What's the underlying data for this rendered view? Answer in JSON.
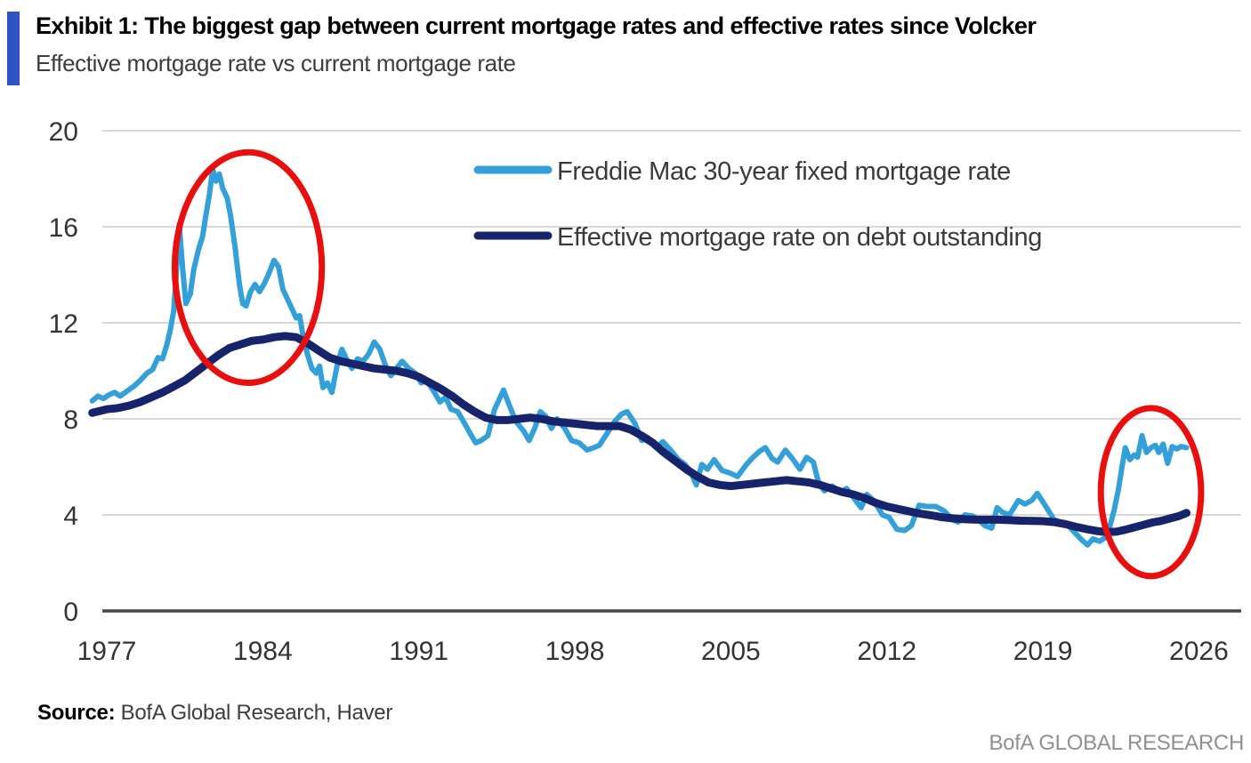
{
  "header": {
    "title": "Exhibit 1: The biggest gap between current mortgage rates and effective rates since Volcker",
    "subtitle": "Effective mortgage rate vs current mortgage rate",
    "accent_color": "#2e53c6"
  },
  "footer": {
    "source_label": "Source:",
    "source_value": " BofA Global Research, Haver",
    "brand": "BofA GLOBAL RESEARCH"
  },
  "chart_data": {
    "type": "line",
    "title": "Exhibit 1: The biggest gap between current mortgage rates and effective rates since Volcker",
    "subtitle": "Effective mortgage rate vs current mortgage rate",
    "xlabel": "",
    "ylabel": "",
    "xticks": [
      1977,
      1984,
      1991,
      1998,
      2005,
      2012,
      2019,
      2026
    ],
    "yticks": [
      0,
      4,
      8,
      12,
      16,
      20
    ],
    "xlim": [
      1976.8,
      2027.9
    ],
    "ylim": [
      0,
      20
    ],
    "grid": "horizontal",
    "grid_color": "#d8d8d8",
    "axis_color": "#474747",
    "legend_position": "top-center-inside",
    "series": [
      {
        "name": "Freddie Mac 30-year fixed mortgage rate",
        "color": "#33a0d9",
        "width": 6,
        "points": [
          [
            1976.35,
            8.75
          ],
          [
            1976.6,
            8.95
          ],
          [
            1976.85,
            8.85
          ],
          [
            1977.1,
            9.0
          ],
          [
            1977.35,
            9.1
          ],
          [
            1977.6,
            8.95
          ],
          [
            1977.9,
            9.15
          ],
          [
            1978.2,
            9.35
          ],
          [
            1978.5,
            9.6
          ],
          [
            1978.8,
            9.9
          ],
          [
            1979.05,
            10.05
          ],
          [
            1979.3,
            10.55
          ],
          [
            1979.5,
            10.5
          ],
          [
            1979.7,
            11.1
          ],
          [
            1979.85,
            11.7
          ],
          [
            1980.0,
            12.5
          ],
          [
            1980.1,
            13.8
          ],
          [
            1980.25,
            16.1
          ],
          [
            1980.4,
            14.3
          ],
          [
            1980.55,
            12.8
          ],
          [
            1980.75,
            13.2
          ],
          [
            1980.9,
            14.2
          ],
          [
            1981.1,
            15.0
          ],
          [
            1981.3,
            15.6
          ],
          [
            1981.45,
            16.5
          ],
          [
            1981.6,
            17.3
          ],
          [
            1981.75,
            18.4
          ],
          [
            1981.9,
            17.9
          ],
          [
            1982.05,
            18.2
          ],
          [
            1982.2,
            17.6
          ],
          [
            1982.4,
            17.2
          ],
          [
            1982.55,
            16.5
          ],
          [
            1982.75,
            15.2
          ],
          [
            1982.95,
            13.6
          ],
          [
            1983.1,
            12.8
          ],
          [
            1983.25,
            12.7
          ],
          [
            1983.45,
            13.3
          ],
          [
            1983.65,
            13.6
          ],
          [
            1983.85,
            13.3
          ],
          [
            1984.05,
            13.6
          ],
          [
            1984.25,
            14.0
          ],
          [
            1984.5,
            14.6
          ],
          [
            1984.7,
            14.35
          ],
          [
            1984.9,
            13.4
          ],
          [
            1985.1,
            13.0
          ],
          [
            1985.3,
            12.6
          ],
          [
            1985.5,
            12.2
          ],
          [
            1985.65,
            12.3
          ],
          [
            1985.8,
            11.5
          ],
          [
            1986.0,
            10.7
          ],
          [
            1986.2,
            10.1
          ],
          [
            1986.4,
            9.9
          ],
          [
            1986.55,
            10.2
          ],
          [
            1986.7,
            9.3
          ],
          [
            1986.9,
            9.5
          ],
          [
            1987.1,
            9.1
          ],
          [
            1987.35,
            10.3
          ],
          [
            1987.55,
            10.9
          ],
          [
            1987.75,
            10.5
          ],
          [
            1988.0,
            10.1
          ],
          [
            1988.25,
            10.5
          ],
          [
            1988.5,
            10.4
          ],
          [
            1988.75,
            10.7
          ],
          [
            1989.0,
            11.2
          ],
          [
            1989.25,
            10.9
          ],
          [
            1989.55,
            10.1
          ],
          [
            1989.75,
            9.8
          ],
          [
            1990.0,
            10.1
          ],
          [
            1990.25,
            10.4
          ],
          [
            1990.55,
            10.1
          ],
          [
            1990.85,
            9.9
          ],
          [
            1991.1,
            9.5
          ],
          [
            1991.35,
            9.6
          ],
          [
            1991.7,
            9.1
          ],
          [
            1991.95,
            8.7
          ],
          [
            1992.2,
            8.9
          ],
          [
            1992.45,
            8.4
          ],
          [
            1992.75,
            8.3
          ],
          [
            1993.0,
            7.9
          ],
          [
            1993.3,
            7.4
          ],
          [
            1993.55,
            7.0
          ],
          [
            1993.8,
            7.1
          ],
          [
            1994.1,
            7.3
          ],
          [
            1994.4,
            8.4
          ],
          [
            1994.8,
            9.2
          ],
          [
            1995.05,
            8.6
          ],
          [
            1995.35,
            7.9
          ],
          [
            1995.7,
            7.5
          ],
          [
            1995.95,
            7.1
          ],
          [
            1996.2,
            7.6
          ],
          [
            1996.45,
            8.3
          ],
          [
            1996.7,
            8.1
          ],
          [
            1996.95,
            7.6
          ],
          [
            1997.2,
            8.0
          ],
          [
            1997.55,
            7.6
          ],
          [
            1997.85,
            7.1
          ],
          [
            1998.2,
            7.0
          ],
          [
            1998.55,
            6.7
          ],
          [
            1998.85,
            6.8
          ],
          [
            1999.1,
            6.9
          ],
          [
            1999.45,
            7.4
          ],
          [
            1999.8,
            7.9
          ],
          [
            2000.1,
            8.2
          ],
          [
            2000.35,
            8.3
          ],
          [
            2000.7,
            7.8
          ],
          [
            2001.0,
            7.1
          ],
          [
            2001.3,
            7.2
          ],
          [
            2001.65,
            6.8
          ],
          [
            2001.95,
            7.05
          ],
          [
            2002.3,
            6.7
          ],
          [
            2002.65,
            6.3
          ],
          [
            2002.95,
            6.1
          ],
          [
            2003.2,
            5.8
          ],
          [
            2003.45,
            5.25
          ],
          [
            2003.7,
            6.1
          ],
          [
            2003.95,
            5.9
          ],
          [
            2004.25,
            6.3
          ],
          [
            2004.6,
            5.85
          ],
          [
            2004.95,
            5.75
          ],
          [
            2005.3,
            5.6
          ],
          [
            2005.7,
            6.1
          ],
          [
            2006.0,
            6.4
          ],
          [
            2006.3,
            6.65
          ],
          [
            2006.55,
            6.8
          ],
          [
            2006.85,
            6.35
          ],
          [
            2007.1,
            6.2
          ],
          [
            2007.45,
            6.7
          ],
          [
            2007.8,
            6.3
          ],
          [
            2008.1,
            5.9
          ],
          [
            2008.4,
            6.4
          ],
          [
            2008.7,
            6.2
          ],
          [
            2008.95,
            5.3
          ],
          [
            2009.2,
            5.0
          ],
          [
            2009.55,
            5.2
          ],
          [
            2009.9,
            4.95
          ],
          [
            2010.2,
            5.1
          ],
          [
            2010.6,
            4.6
          ],
          [
            2010.85,
            4.3
          ],
          [
            2011.1,
            4.85
          ],
          [
            2011.45,
            4.55
          ],
          [
            2011.8,
            4.0
          ],
          [
            2012.1,
            3.9
          ],
          [
            2012.45,
            3.4
          ],
          [
            2012.8,
            3.35
          ],
          [
            2013.1,
            3.55
          ],
          [
            2013.45,
            4.4
          ],
          [
            2013.8,
            4.35
          ],
          [
            2014.2,
            4.35
          ],
          [
            2014.6,
            4.15
          ],
          [
            2014.95,
            3.8
          ],
          [
            2015.2,
            3.7
          ],
          [
            2015.5,
            4.0
          ],
          [
            2015.85,
            3.95
          ],
          [
            2016.1,
            3.8
          ],
          [
            2016.4,
            3.55
          ],
          [
            2016.7,
            3.45
          ],
          [
            2016.95,
            4.3
          ],
          [
            2017.2,
            4.1
          ],
          [
            2017.5,
            4.0
          ],
          [
            2017.9,
            4.6
          ],
          [
            2018.2,
            4.45
          ],
          [
            2018.5,
            4.6
          ],
          [
            2018.75,
            4.9
          ],
          [
            2019.1,
            4.4
          ],
          [
            2019.5,
            3.8
          ],
          [
            2019.8,
            3.7
          ],
          [
            2020.1,
            3.6
          ],
          [
            2020.4,
            3.3
          ],
          [
            2020.7,
            3.0
          ],
          [
            2021.0,
            2.75
          ],
          [
            2021.25,
            3.0
          ],
          [
            2021.55,
            2.9
          ],
          [
            2021.8,
            3.05
          ],
          [
            2022.0,
            3.5
          ],
          [
            2022.2,
            4.2
          ],
          [
            2022.4,
            5.1
          ],
          [
            2022.55,
            6.0
          ],
          [
            2022.7,
            6.8
          ],
          [
            2022.9,
            6.3
          ],
          [
            2023.1,
            6.5
          ],
          [
            2023.25,
            6.4
          ],
          [
            2023.45,
            7.3
          ],
          [
            2023.65,
            6.6
          ],
          [
            2023.85,
            6.8
          ],
          [
            2024.05,
            6.9
          ],
          [
            2024.2,
            6.6
          ],
          [
            2024.4,
            6.95
          ],
          [
            2024.6,
            6.15
          ],
          [
            2024.8,
            6.85
          ],
          [
            2025.0,
            6.75
          ],
          [
            2025.2,
            6.85
          ],
          [
            2025.45,
            6.8
          ]
        ]
      },
      {
        "name": "Effective mortgage rate on debt outstanding",
        "color": "#17246b",
        "width": 9,
        "points": [
          [
            1976.35,
            8.25
          ],
          [
            1977.0,
            8.4
          ],
          [
            1977.5,
            8.45
          ],
          [
            1978.0,
            8.55
          ],
          [
            1978.5,
            8.7
          ],
          [
            1979.0,
            8.9
          ],
          [
            1979.5,
            9.1
          ],
          [
            1980.0,
            9.35
          ],
          [
            1980.5,
            9.6
          ],
          [
            1981.0,
            9.95
          ],
          [
            1981.5,
            10.3
          ],
          [
            1982.0,
            10.65
          ],
          [
            1982.5,
            10.95
          ],
          [
            1983.0,
            11.1
          ],
          [
            1983.5,
            11.25
          ],
          [
            1984.0,
            11.3
          ],
          [
            1984.5,
            11.4
          ],
          [
            1985.0,
            11.45
          ],
          [
            1985.5,
            11.4
          ],
          [
            1986.0,
            11.15
          ],
          [
            1986.5,
            10.85
          ],
          [
            1987.0,
            10.55
          ],
          [
            1987.5,
            10.4
          ],
          [
            1988.0,
            10.3
          ],
          [
            1988.5,
            10.2
          ],
          [
            1989.0,
            10.1
          ],
          [
            1989.5,
            10.05
          ],
          [
            1990.0,
            10.0
          ],
          [
            1990.5,
            9.9
          ],
          [
            1991.0,
            9.75
          ],
          [
            1991.5,
            9.5
          ],
          [
            1992.0,
            9.25
          ],
          [
            1992.5,
            8.95
          ],
          [
            1993.0,
            8.6
          ],
          [
            1993.5,
            8.3
          ],
          [
            1994.0,
            8.05
          ],
          [
            1994.5,
            7.95
          ],
          [
            1995.0,
            7.95
          ],
          [
            1995.5,
            8.0
          ],
          [
            1996.0,
            8.05
          ],
          [
            1996.5,
            8.0
          ],
          [
            1997.0,
            7.9
          ],
          [
            1997.5,
            7.85
          ],
          [
            1998.0,
            7.8
          ],
          [
            1998.5,
            7.75
          ],
          [
            1999.0,
            7.7
          ],
          [
            1999.5,
            7.7
          ],
          [
            2000.0,
            7.7
          ],
          [
            2000.5,
            7.55
          ],
          [
            2001.0,
            7.3
          ],
          [
            2001.5,
            7.0
          ],
          [
            2002.0,
            6.6
          ],
          [
            2002.5,
            6.25
          ],
          [
            2003.0,
            5.9
          ],
          [
            2003.5,
            5.6
          ],
          [
            2004.0,
            5.35
          ],
          [
            2004.5,
            5.25
          ],
          [
            2005.0,
            5.2
          ],
          [
            2005.5,
            5.25
          ],
          [
            2006.0,
            5.3
          ],
          [
            2006.5,
            5.35
          ],
          [
            2007.0,
            5.4
          ],
          [
            2007.5,
            5.45
          ],
          [
            2008.0,
            5.4
          ],
          [
            2008.5,
            5.35
          ],
          [
            2009.0,
            5.25
          ],
          [
            2009.5,
            5.1
          ],
          [
            2010.0,
            4.95
          ],
          [
            2010.5,
            4.85
          ],
          [
            2011.0,
            4.7
          ],
          [
            2011.5,
            4.5
          ],
          [
            2012.0,
            4.35
          ],
          [
            2012.5,
            4.25
          ],
          [
            2013.0,
            4.15
          ],
          [
            2013.5,
            4.05
          ],
          [
            2014.0,
            3.98
          ],
          [
            2014.5,
            3.9
          ],
          [
            2015.0,
            3.85
          ],
          [
            2015.5,
            3.82
          ],
          [
            2016.0,
            3.8
          ],
          [
            2016.5,
            3.8
          ],
          [
            2017.0,
            3.8
          ],
          [
            2017.5,
            3.78
          ],
          [
            2018.0,
            3.76
          ],
          [
            2018.5,
            3.75
          ],
          [
            2019.0,
            3.74
          ],
          [
            2019.5,
            3.7
          ],
          [
            2020.0,
            3.62
          ],
          [
            2020.5,
            3.5
          ],
          [
            2021.0,
            3.4
          ],
          [
            2021.5,
            3.32
          ],
          [
            2021.9,
            3.28
          ],
          [
            2022.3,
            3.3
          ],
          [
            2022.7,
            3.38
          ],
          [
            2023.1,
            3.48
          ],
          [
            2023.5,
            3.58
          ],
          [
            2023.9,
            3.68
          ],
          [
            2024.3,
            3.75
          ],
          [
            2024.7,
            3.85
          ],
          [
            2025.1,
            3.95
          ],
          [
            2025.45,
            4.08
          ]
        ]
      }
    ],
    "annotations": [
      {
        "shape": "ellipse",
        "label": "volcker-era-gap",
        "x": 1983.35,
        "y": 14.3,
        "rx": 3.3,
        "ry": 4.8,
        "color": "#e90f0f",
        "stroke_width": 7
      },
      {
        "shape": "ellipse",
        "label": "current-gap",
        "x": 2023.85,
        "y": 4.95,
        "rx": 2.25,
        "ry": 3.5,
        "color": "#e90f0f",
        "stroke_width": 7
      }
    ]
  }
}
